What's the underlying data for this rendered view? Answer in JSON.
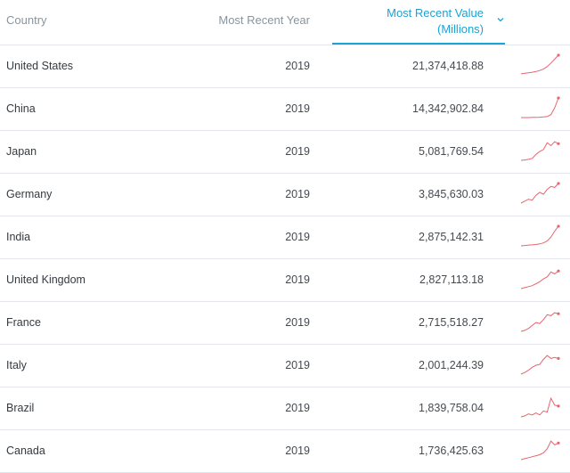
{
  "header": {
    "country": "Country",
    "year": "Most Recent Year",
    "value_line1": "Most Recent Value",
    "value_line2": "(Millions)",
    "sort_icon": "chevron-down-icon"
  },
  "colors": {
    "accent": "#1aa3d4",
    "sparkline": "#e8646f",
    "divider": "#e3e6ea"
  },
  "rows": [
    {
      "country": "United States",
      "year": "2019",
      "value": "21,374,418.88",
      "trend": [
        0.05,
        0.08,
        0.1,
        0.13,
        0.17,
        0.22,
        0.3,
        0.42,
        0.6,
        0.8,
        1.0
      ]
    },
    {
      "country": "China",
      "year": "2019",
      "value": "14,342,902.84",
      "trend": [
        0.0,
        0.0,
        0.0,
        0.01,
        0.01,
        0.02,
        0.03,
        0.05,
        0.15,
        0.5,
        1.0
      ]
    },
    {
      "country": "Japan",
      "year": "2019",
      "value": "5,081,769.54",
      "trend": [
        0.0,
        0.02,
        0.05,
        0.1,
        0.3,
        0.45,
        0.55,
        0.9,
        0.75,
        0.95,
        0.85
      ]
    },
    {
      "country": "Germany",
      "year": "2019",
      "value": "3,845,630.03",
      "trend": [
        0.0,
        0.1,
        0.2,
        0.15,
        0.4,
        0.55,
        0.45,
        0.7,
        0.85,
        0.8,
        1.0
      ]
    },
    {
      "country": "India",
      "year": "2019",
      "value": "2,875,142.31",
      "trend": [
        0.0,
        0.02,
        0.04,
        0.05,
        0.07,
        0.1,
        0.15,
        0.25,
        0.45,
        0.75,
        1.0
      ]
    },
    {
      "country": "United Kingdom",
      "year": "2019",
      "value": "2,827,113.18",
      "trend": [
        0.0,
        0.05,
        0.1,
        0.15,
        0.25,
        0.35,
        0.5,
        0.6,
        0.85,
        0.75,
        0.9
      ]
    },
    {
      "country": "France",
      "year": "2019",
      "value": "2,715,518.27",
      "trend": [
        0.0,
        0.05,
        0.15,
        0.3,
        0.45,
        0.4,
        0.6,
        0.85,
        0.8,
        0.95,
        0.9
      ]
    },
    {
      "country": "Italy",
      "year": "2019",
      "value": "2,001,244.39",
      "trend": [
        0.0,
        0.08,
        0.2,
        0.35,
        0.45,
        0.5,
        0.75,
        0.95,
        0.8,
        0.85,
        0.8
      ]
    },
    {
      "country": "Brazil",
      "year": "2019",
      "value": "1,839,758.04",
      "trend": [
        0.0,
        0.05,
        0.15,
        0.1,
        0.2,
        0.1,
        0.3,
        0.25,
        0.95,
        0.6,
        0.55
      ]
    },
    {
      "country": "Canada",
      "year": "2019",
      "value": "1,736,425.63",
      "trend": [
        0.0,
        0.05,
        0.1,
        0.15,
        0.2,
        0.25,
        0.35,
        0.55,
        0.95,
        0.75,
        0.85
      ]
    }
  ]
}
